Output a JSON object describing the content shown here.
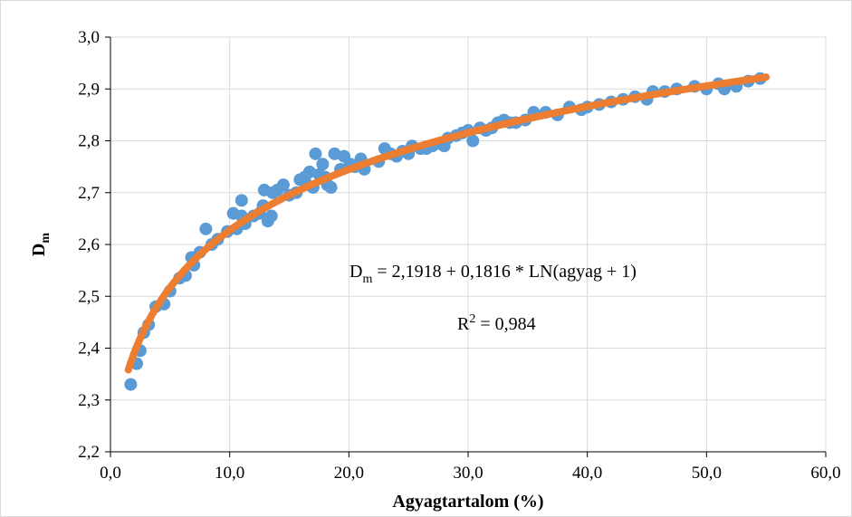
{
  "chart_data": {
    "type": "scatter",
    "xlabel": "Agyagtartalom (%)",
    "ylabel_main": "D",
    "ylabel_sub": "m",
    "xlim": [
      0,
      60
    ],
    "ylim": [
      2.2,
      3.0
    ],
    "x_ticks": [
      "0,0",
      "10,0",
      "20,0",
      "30,0",
      "40,0",
      "50,0",
      "60,0"
    ],
    "y_ticks": [
      "2,2",
      "2,3",
      "2,4",
      "2,5",
      "2,6",
      "2,7",
      "2,8",
      "2,9",
      "3,0"
    ],
    "grid": true,
    "colors": {
      "points": "#5b9bd5",
      "trend": "#ed7d31",
      "grid": "#d9d9d9"
    },
    "trendline": {
      "a": 2.1918,
      "b": 0.1816,
      "x_range": [
        1.5,
        55
      ]
    },
    "annotations": {
      "eq_main": "D",
      "eq_sub": "m",
      "eq_rest": " = 2,1918 + 0,1816 * LN(agyag + 1)",
      "r2_main": "R",
      "r2_sup": "2",
      "r2_rest": " = 0,984"
    },
    "points": [
      [
        1.7,
        2.33
      ],
      [
        2.2,
        2.37
      ],
      [
        2.5,
        2.395
      ],
      [
        2.8,
        2.43
      ],
      [
        3.2,
        2.445
      ],
      [
        3.8,
        2.48
      ],
      [
        4.5,
        2.485
      ],
      [
        5.0,
        2.51
      ],
      [
        5.8,
        2.535
      ],
      [
        6.3,
        2.54
      ],
      [
        6.8,
        2.575
      ],
      [
        7.0,
        2.56
      ],
      [
        7.5,
        2.585
      ],
      [
        8.0,
        2.63
      ],
      [
        8.5,
        2.6
      ],
      [
        9.0,
        2.61
      ],
      [
        9.8,
        2.625
      ],
      [
        10.3,
        2.66
      ],
      [
        10.6,
        2.63
      ],
      [
        11.0,
        2.655
      ],
      [
        11.0,
        2.685
      ],
      [
        11.3,
        2.64
      ],
      [
        12.0,
        2.655
      ],
      [
        12.5,
        2.66
      ],
      [
        12.8,
        2.675
      ],
      [
        12.9,
        2.705
      ],
      [
        13.2,
        2.645
      ],
      [
        13.5,
        2.655
      ],
      [
        13.6,
        2.7
      ],
      [
        14.0,
        2.705
      ],
      [
        14.5,
        2.715
      ],
      [
        15.0,
        2.695
      ],
      [
        15.6,
        2.7
      ],
      [
        15.9,
        2.725
      ],
      [
        16.3,
        2.73
      ],
      [
        16.5,
        2.715
      ],
      [
        16.7,
        2.74
      ],
      [
        17.0,
        2.71
      ],
      [
        17.2,
        2.775
      ],
      [
        17.5,
        2.735
      ],
      [
        17.8,
        2.755
      ],
      [
        18.0,
        2.73
      ],
      [
        18.2,
        2.715
      ],
      [
        18.5,
        2.71
      ],
      [
        18.8,
        2.775
      ],
      [
        19.3,
        2.745
      ],
      [
        19.6,
        2.77
      ],
      [
        20.1,
        2.755
      ],
      [
        20.5,
        2.75
      ],
      [
        21.0,
        2.765
      ],
      [
        21.3,
        2.745
      ],
      [
        22.5,
        2.76
      ],
      [
        23.0,
        2.785
      ],
      [
        23.5,
        2.775
      ],
      [
        24.0,
        2.77
      ],
      [
        24.5,
        2.78
      ],
      [
        25.0,
        2.775
      ],
      [
        25.3,
        2.79
      ],
      [
        26.0,
        2.785
      ],
      [
        26.5,
        2.785
      ],
      [
        27.0,
        2.79
      ],
      [
        27.5,
        2.795
      ],
      [
        28.0,
        2.79
      ],
      [
        28.3,
        2.805
      ],
      [
        29.0,
        2.81
      ],
      [
        29.5,
        2.815
      ],
      [
        30.0,
        2.82
      ],
      [
        30.4,
        2.8
      ],
      [
        31.0,
        2.825
      ],
      [
        31.5,
        2.82
      ],
      [
        32.0,
        2.825
      ],
      [
        32.5,
        2.835
      ],
      [
        33.0,
        2.84
      ],
      [
        33.5,
        2.835
      ],
      [
        34.0,
        2.835
      ],
      [
        34.8,
        2.84
      ],
      [
        35.5,
        2.855
      ],
      [
        36.5,
        2.855
      ],
      [
        37.5,
        2.85
      ],
      [
        38.5,
        2.865
      ],
      [
        39.5,
        2.86
      ],
      [
        40.0,
        2.865
      ],
      [
        41.0,
        2.87
      ],
      [
        42.0,
        2.875
      ],
      [
        43.0,
        2.88
      ],
      [
        44.0,
        2.885
      ],
      [
        45.0,
        2.88
      ],
      [
        45.5,
        2.895
      ],
      [
        46.5,
        2.895
      ],
      [
        47.5,
        2.9
      ],
      [
        49.0,
        2.905
      ],
      [
        50.0,
        2.9
      ],
      [
        51.0,
        2.91
      ],
      [
        51.5,
        2.9
      ],
      [
        52.5,
        2.905
      ],
      [
        53.5,
        2.915
      ],
      [
        54.5,
        2.92
      ]
    ]
  }
}
